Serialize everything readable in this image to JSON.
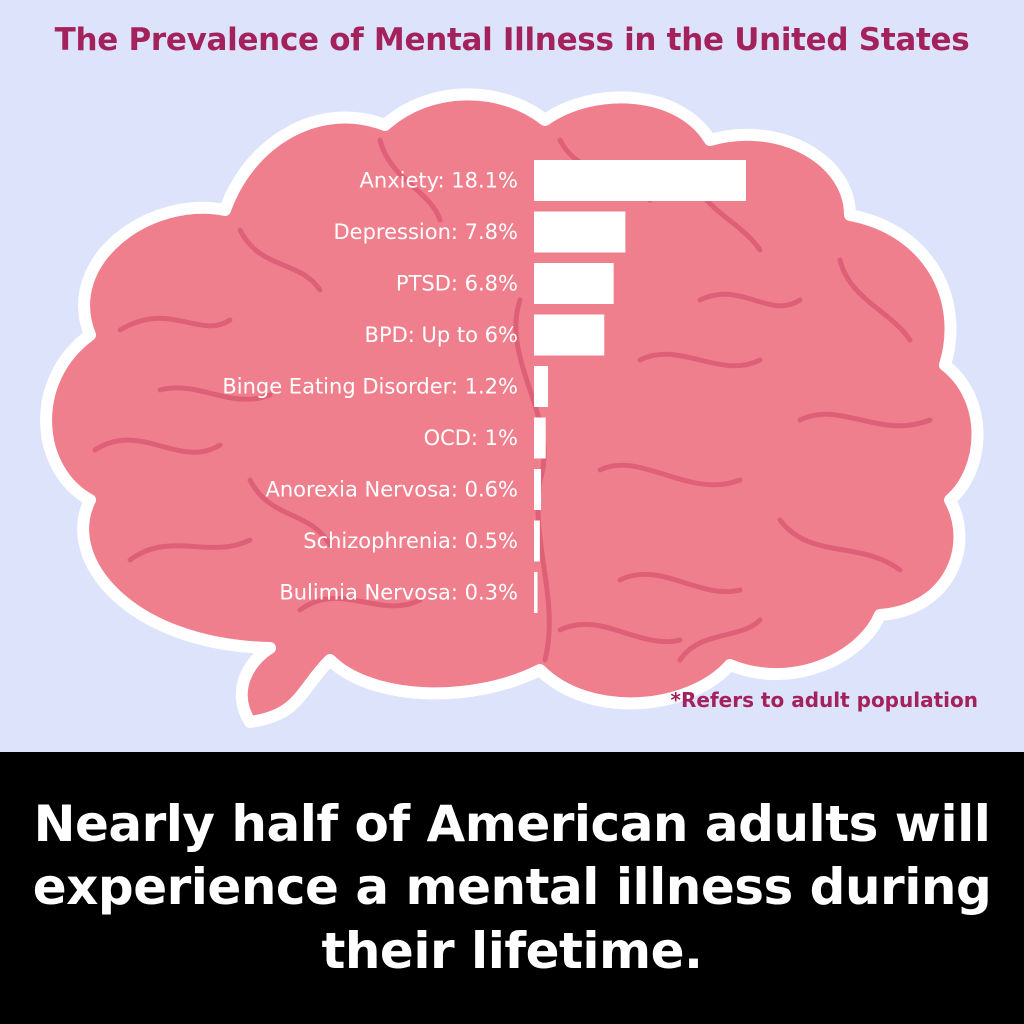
{
  "header": {
    "title": "The Prevalence of Mental Illness in the United States"
  },
  "footnote": "*Refers to adult population",
  "banner": {
    "text": "Nearly half of American adults will experience a mental illness during their lifetime."
  },
  "colors": {
    "background": "#dce3fb",
    "brain": "#f07f8e",
    "brain_outline": "#ffffff",
    "brain_folds": "#d95670",
    "bars": "#ffffff",
    "title": "#a3225c",
    "banner": "#000000"
  },
  "chart_data": {
    "type": "bar",
    "orientation": "horizontal",
    "categories": [
      "Anxiety: 18.1%",
      "Depression: 7.8%",
      "PTSD: 6.8%",
      "BPD: Up to 6%",
      "Binge Eating Disorder: 1.2%",
      "OCD: 1%",
      "Anorexia Nervosa: 0.6%",
      "Schizophrenia: 0.5%",
      "Bulimia Nervosa: 0.3%"
    ],
    "values": [
      18.1,
      7.8,
      6.8,
      6,
      1.2,
      1,
      0.6,
      0.5,
      0.3
    ],
    "unit": "%",
    "title": "The Prevalence of Mental Illness in the United States",
    "xlabel": "",
    "ylabel": "",
    "xlim": [
      0,
      18.1
    ],
    "grid": false,
    "legend": "none"
  }
}
